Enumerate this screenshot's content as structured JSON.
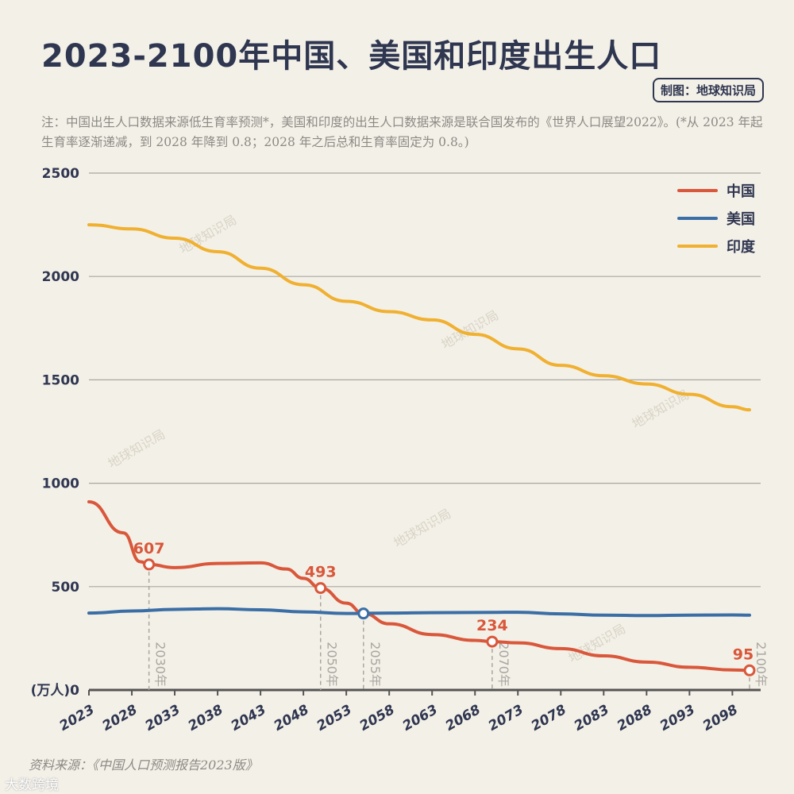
{
  "title": "2023-2100年中国、美国和印度出生人口",
  "credit": "制图：地球知识局",
  "note": "注：中国出生人口数据来源低生育率预测*，美国和印度的出生人口数据来源是联合国发布的《世界人口展望2022》。(*从 2023 年起生育率逐渐递减，到 2028 年降到 0.8；2028 年之后总和生育率固定为 0.8。)",
  "source": "资料来源：《中国人口预测报告2023版》",
  "watermark": "地球知识局",
  "corner_logo": "大数跨境",
  "chart_data": {
    "type": "line",
    "ylabel": "(万人)",
    "ylim": [
      0,
      2500
    ],
    "yticks": [
      0,
      500,
      1000,
      1500,
      2000,
      2500
    ],
    "xlim": [
      2023,
      2100
    ],
    "xticks": [
      "2023",
      "2028",
      "2033",
      "2038",
      "2043",
      "2048",
      "2053",
      "2058",
      "2063",
      "2068",
      "2073",
      "2078",
      "2083",
      "2088",
      "2093",
      "2098"
    ],
    "grid": true,
    "legend": "top-right",
    "series": [
      {
        "name": "中国",
        "color": "#d9573a",
        "x": [
          2023,
          2027,
          2029,
          2030,
          2033,
          2038,
          2043,
          2046,
          2048,
          2050,
          2053,
          2055,
          2058,
          2063,
          2068,
          2070,
          2073,
          2078,
          2083,
          2088,
          2093,
          2098,
          2100
        ],
        "values": [
          910,
          760,
          620,
          607,
          592,
          612,
          615,
          585,
          540,
          493,
          420,
          370,
          320,
          268,
          240,
          234,
          228,
          200,
          165,
          135,
          110,
          97,
          95
        ]
      },
      {
        "name": "美国",
        "color": "#3a6ea5",
        "x": [
          2023,
          2028,
          2033,
          2038,
          2043,
          2048,
          2053,
          2058,
          2063,
          2068,
          2073,
          2078,
          2083,
          2088,
          2093,
          2098,
          2100
        ],
        "values": [
          372,
          382,
          390,
          393,
          388,
          378,
          370,
          372,
          374,
          375,
          376,
          368,
          362,
          360,
          362,
          363,
          362
        ]
      },
      {
        "name": "印度",
        "color": "#f0b030",
        "x": [
          2023,
          2028,
          2033,
          2038,
          2043,
          2048,
          2053,
          2058,
          2063,
          2068,
          2073,
          2078,
          2083,
          2088,
          2093,
          2098,
          2100
        ],
        "values": [
          2250,
          2230,
          2185,
          2120,
          2040,
          1960,
          1880,
          1830,
          1790,
          1720,
          1650,
          1570,
          1520,
          1480,
          1430,
          1370,
          1355
        ]
      }
    ],
    "annotations": [
      {
        "year": 2030,
        "label": "2030年",
        "value": "607",
        "series": "中国"
      },
      {
        "year": 2050,
        "label": "2050年",
        "value": "493",
        "series": "中国"
      },
      {
        "year": 2055,
        "label": "2055年",
        "value": "",
        "series": "美国",
        "at": 370
      },
      {
        "year": 2070,
        "label": "2070年",
        "value": "234",
        "series": "中国"
      },
      {
        "year": 2100,
        "label": "2100年",
        "value": "95",
        "series": "中国"
      }
    ]
  }
}
